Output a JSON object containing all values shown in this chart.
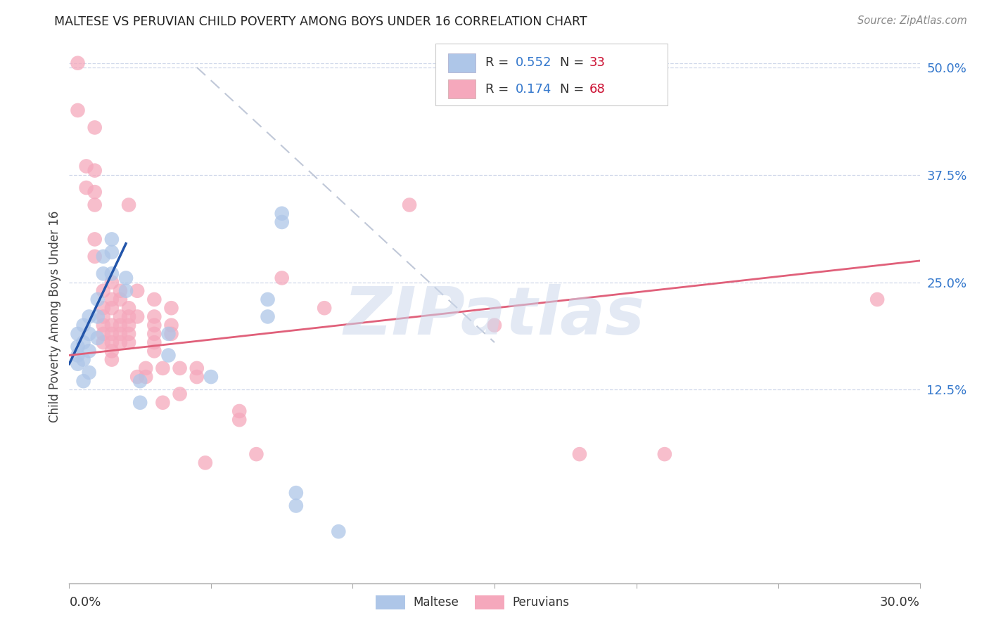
{
  "title": "MALTESE VS PERUVIAN CHILD POVERTY AMONG BOYS UNDER 16 CORRELATION CHART",
  "source": "Source: ZipAtlas.com",
  "ylabel": "Child Poverty Among Boys Under 16",
  "ytick_labels": [
    "12.5%",
    "25.0%",
    "37.5%",
    "50.0%"
  ],
  "ytick_values": [
    12.5,
    25.0,
    37.5,
    50.0
  ],
  "xmin": 0.0,
  "xmax": 30.0,
  "ymin": -10.0,
  "ymax": 52.0,
  "blue_color": "#aec6e8",
  "pink_color": "#f5a8bc",
  "blue_line_color": "#2255aa",
  "pink_line_color": "#e0607a",
  "dashed_line_color": "#c0c8d8",
  "legend_R_color": "#3377cc",
  "legend_N_color": "#cc1133",
  "watermark_text": "ZIPatlas",
  "maltese_points": [
    [
      0.3,
      19.0
    ],
    [
      0.3,
      17.5
    ],
    [
      0.3,
      16.5
    ],
    [
      0.3,
      15.5
    ],
    [
      0.5,
      20.0
    ],
    [
      0.5,
      18.0
    ],
    [
      0.5,
      16.0
    ],
    [
      0.5,
      13.5
    ],
    [
      0.7,
      21.0
    ],
    [
      0.7,
      19.0
    ],
    [
      0.7,
      17.0
    ],
    [
      0.7,
      14.5
    ],
    [
      1.0,
      23.0
    ],
    [
      1.0,
      21.0
    ],
    [
      1.0,
      18.5
    ],
    [
      1.2,
      28.0
    ],
    [
      1.2,
      26.0
    ],
    [
      1.5,
      30.0
    ],
    [
      1.5,
      28.5
    ],
    [
      1.5,
      26.0
    ],
    [
      2.0,
      25.5
    ],
    [
      2.0,
      24.0
    ],
    [
      2.5,
      13.5
    ],
    [
      2.5,
      11.0
    ],
    [
      3.5,
      19.0
    ],
    [
      3.5,
      16.5
    ],
    [
      5.0,
      14.0
    ],
    [
      7.0,
      23.0
    ],
    [
      7.0,
      21.0
    ],
    [
      7.5,
      33.0
    ],
    [
      7.5,
      32.0
    ],
    [
      8.0,
      0.5
    ],
    [
      8.0,
      -1.0
    ],
    [
      9.5,
      -4.0
    ]
  ],
  "peruvian_points": [
    [
      0.3,
      50.5
    ],
    [
      0.3,
      45.0
    ],
    [
      0.6,
      38.5
    ],
    [
      0.6,
      36.0
    ],
    [
      0.9,
      43.0
    ],
    [
      0.9,
      38.0
    ],
    [
      0.9,
      35.5
    ],
    [
      0.9,
      34.0
    ],
    [
      0.9,
      30.0
    ],
    [
      0.9,
      28.0
    ],
    [
      1.2,
      24.0
    ],
    [
      1.2,
      22.0
    ],
    [
      1.2,
      21.0
    ],
    [
      1.2,
      20.0
    ],
    [
      1.2,
      19.0
    ],
    [
      1.2,
      18.0
    ],
    [
      1.5,
      25.0
    ],
    [
      1.5,
      23.0
    ],
    [
      1.5,
      22.0
    ],
    [
      1.5,
      20.0
    ],
    [
      1.5,
      19.0
    ],
    [
      1.5,
      18.0
    ],
    [
      1.5,
      17.0
    ],
    [
      1.5,
      16.0
    ],
    [
      1.8,
      24.0
    ],
    [
      1.8,
      23.0
    ],
    [
      1.8,
      21.0
    ],
    [
      1.8,
      20.0
    ],
    [
      1.8,
      19.0
    ],
    [
      1.8,
      18.0
    ],
    [
      2.1,
      34.0
    ],
    [
      2.1,
      22.0
    ],
    [
      2.1,
      21.0
    ],
    [
      2.1,
      20.0
    ],
    [
      2.1,
      19.0
    ],
    [
      2.1,
      18.0
    ],
    [
      2.4,
      24.0
    ],
    [
      2.4,
      21.0
    ],
    [
      2.4,
      14.0
    ],
    [
      2.7,
      15.0
    ],
    [
      2.7,
      14.0
    ],
    [
      3.0,
      23.0
    ],
    [
      3.0,
      21.0
    ],
    [
      3.0,
      20.0
    ],
    [
      3.0,
      19.0
    ],
    [
      3.0,
      18.0
    ],
    [
      3.0,
      17.0
    ],
    [
      3.3,
      15.0
    ],
    [
      3.3,
      11.0
    ],
    [
      3.6,
      22.0
    ],
    [
      3.6,
      20.0
    ],
    [
      3.6,
      19.0
    ],
    [
      3.9,
      15.0
    ],
    [
      3.9,
      12.0
    ],
    [
      4.5,
      15.0
    ],
    [
      4.5,
      14.0
    ],
    [
      4.8,
      4.0
    ],
    [
      6.0,
      10.0
    ],
    [
      6.0,
      9.0
    ],
    [
      6.6,
      5.0
    ],
    [
      7.5,
      25.5
    ],
    [
      9.0,
      22.0
    ],
    [
      12.0,
      34.0
    ],
    [
      15.0,
      20.0
    ],
    [
      18.0,
      5.0
    ],
    [
      21.0,
      5.0
    ],
    [
      28.5,
      23.0
    ]
  ],
  "blue_line_x": [
    0.0,
    2.0
  ],
  "blue_line_y": [
    15.5,
    29.5
  ],
  "pink_line_x": [
    0.0,
    30.0
  ],
  "pink_line_y": [
    16.5,
    27.5
  ],
  "dash_line_x": [
    4.5,
    15.0
  ],
  "dash_line_y": [
    50.0,
    18.0
  ]
}
